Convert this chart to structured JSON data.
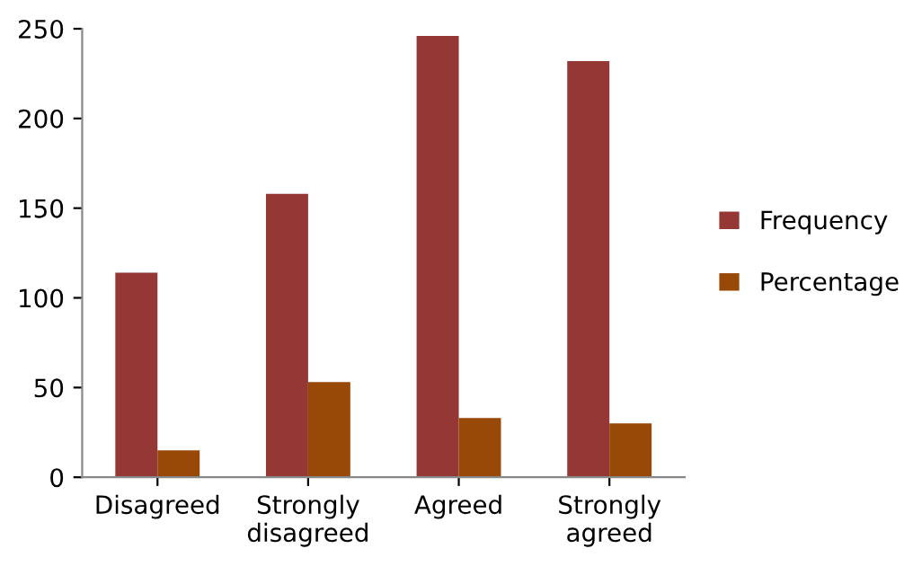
{
  "chart_data": {
    "type": "bar",
    "categories": [
      "Disagreed",
      "Strongly\ndisagreed",
      "Agreed",
      "Strongly\nagreed"
    ],
    "series": [
      {
        "name": "Frequency",
        "color": "#953735",
        "values": [
          114,
          158,
          246,
          232
        ]
      },
      {
        "name": "Percentage",
        "color": "#984807",
        "values": [
          15,
          53,
          33,
          30
        ]
      }
    ],
    "ylim": [
      0,
      250
    ],
    "yticks": [
      0,
      50,
      100,
      150,
      200,
      250
    ],
    "grid": false,
    "legend": "right"
  }
}
